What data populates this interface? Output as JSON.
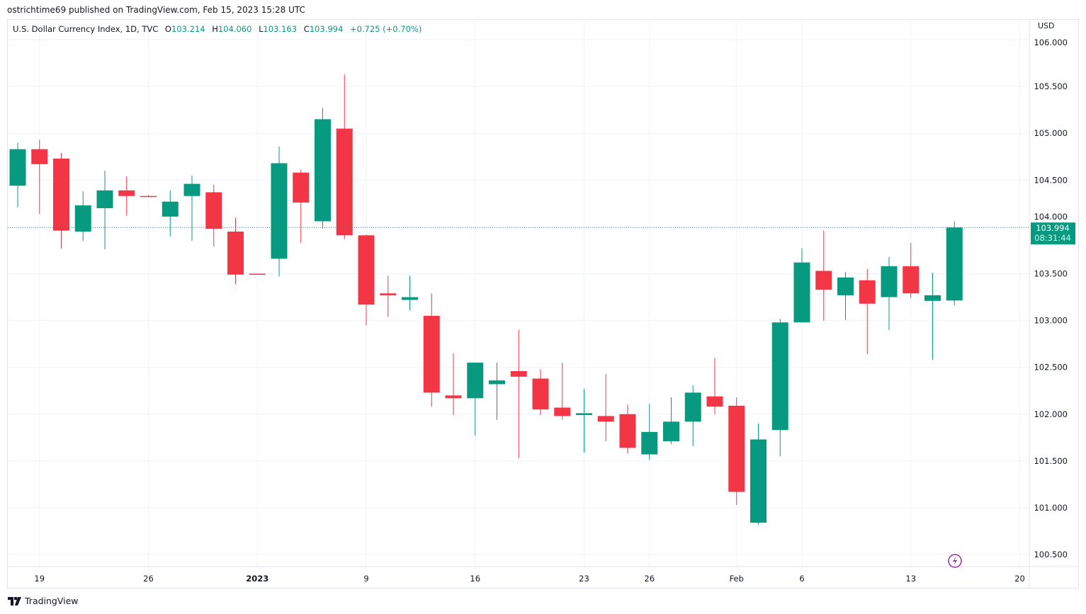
{
  "header": {
    "published": "ostrichtime69 published on TradingView.com, Feb 15, 2023 15:28 UTC"
  },
  "legend": {
    "symbol": "U.S. Dollar Currency Index, 1D, TVC",
    "open_label": "O",
    "open": "103.214",
    "high_label": "H",
    "high": "104.060",
    "low_label": "L",
    "low": "103.163",
    "close_label": "C",
    "close": "103.994",
    "change": "+0.725 (+0.70%)"
  },
  "footer": {
    "brand": "TradingView"
  },
  "colors": {
    "up": "#089981",
    "down": "#F23645",
    "grid": "#f0f3fa",
    "text": "#131722",
    "alert": "#9c27b0"
  },
  "chart_data": {
    "type": "candlestick",
    "title": "U.S. Dollar Currency Index, 1D, TVC",
    "currency": "USD",
    "ylim": [
      100.3,
      106.2
    ],
    "yticks": [
      "106.000",
      "105.500",
      "105.000",
      "104.500",
      "104.000",
      "103.500",
      "103.000",
      "102.500",
      "102.000",
      "101.500",
      "101.000",
      "100.500"
    ],
    "xticks": [
      {
        "index": 1,
        "label": "19"
      },
      {
        "index": 6,
        "label": "26"
      },
      {
        "index": 11,
        "label": "2023",
        "bold": true
      },
      {
        "index": 16,
        "label": "9"
      },
      {
        "index": 21,
        "label": "16"
      },
      {
        "index": 26,
        "label": "23"
      },
      {
        "index": 29,
        "label": "26"
      },
      {
        "index": 33,
        "label": "Feb"
      },
      {
        "index": 36,
        "label": "6"
      },
      {
        "index": 41,
        "label": "13"
      },
      {
        "index": 46,
        "label": "20"
      }
    ],
    "last_price": {
      "value": 103.994,
      "label": "103.994",
      "countdown": "08:31:44"
    },
    "candles": [
      [
        104.44,
        104.83,
        104.9,
        104.21
      ],
      [
        104.83,
        104.67,
        104.93,
        104.14
      ],
      [
        104.73,
        103.96,
        104.79,
        103.77
      ],
      [
        103.95,
        104.23,
        104.38,
        103.85
      ],
      [
        104.2,
        104.39,
        104.6,
        103.76
      ],
      [
        104.39,
        104.33,
        104.54,
        104.12
      ],
      [
        104.33,
        104.32,
        104.34,
        104.32
      ],
      [
        104.11,
        104.27,
        104.39,
        103.9
      ],
      [
        104.33,
        104.46,
        104.55,
        103.85
      ],
      [
        104.37,
        103.98,
        104.45,
        103.79
      ],
      [
        103.95,
        103.49,
        104.1,
        103.39
      ],
      [
        103.5,
        103.49,
        103.5,
        103.49
      ],
      [
        103.66,
        104.68,
        104.86,
        103.47
      ],
      [
        104.58,
        104.26,
        104.61,
        103.83
      ],
      [
        104.06,
        105.15,
        105.27,
        103.98
      ],
      [
        105.05,
        103.91,
        105.63,
        103.87
      ],
      [
        103.91,
        103.17,
        103.92,
        102.95
      ],
      [
        103.29,
        103.27,
        103.48,
        103.04
      ],
      [
        103.22,
        103.25,
        103.48,
        103.11
      ],
      [
        103.05,
        102.23,
        103.29,
        102.08
      ],
      [
        102.2,
        102.17,
        102.65,
        101.99
      ],
      [
        102.17,
        102.55,
        102.55,
        101.77
      ],
      [
        102.32,
        102.36,
        102.55,
        101.94
      ],
      [
        102.46,
        102.4,
        102.9,
        101.53
      ],
      [
        102.38,
        102.05,
        102.48,
        101.99
      ],
      [
        102.07,
        101.98,
        102.55,
        101.94
      ],
      [
        101.99,
        102.01,
        102.27,
        101.59
      ],
      [
        101.98,
        101.92,
        102.43,
        101.71
      ],
      [
        102.0,
        101.64,
        102.1,
        101.58
      ],
      [
        101.57,
        101.81,
        102.11,
        101.51
      ],
      [
        101.71,
        101.92,
        102.18,
        101.68
      ],
      [
        101.92,
        102.23,
        102.31,
        101.66
      ],
      [
        102.19,
        102.08,
        102.6,
        102.0
      ],
      [
        102.09,
        101.17,
        102.18,
        101.03
      ],
      [
        100.84,
        101.73,
        101.9,
        100.82
      ],
      [
        101.83,
        102.98,
        103.02,
        101.55
      ],
      [
        102.98,
        103.62,
        103.77,
        102.98
      ],
      [
        103.53,
        103.33,
        103.96,
        103.0
      ],
      [
        103.27,
        103.46,
        103.52,
        103.01
      ],
      [
        103.43,
        103.18,
        103.55,
        102.64
      ],
      [
        103.25,
        103.58,
        103.68,
        102.9
      ],
      [
        103.58,
        103.29,
        103.83,
        103.24
      ],
      [
        103.21,
        103.27,
        103.51,
        102.58
      ],
      [
        103.214,
        103.994,
        104.06,
        103.163
      ]
    ],
    "candle_format": [
      "open",
      "close",
      "high",
      "low"
    ]
  }
}
